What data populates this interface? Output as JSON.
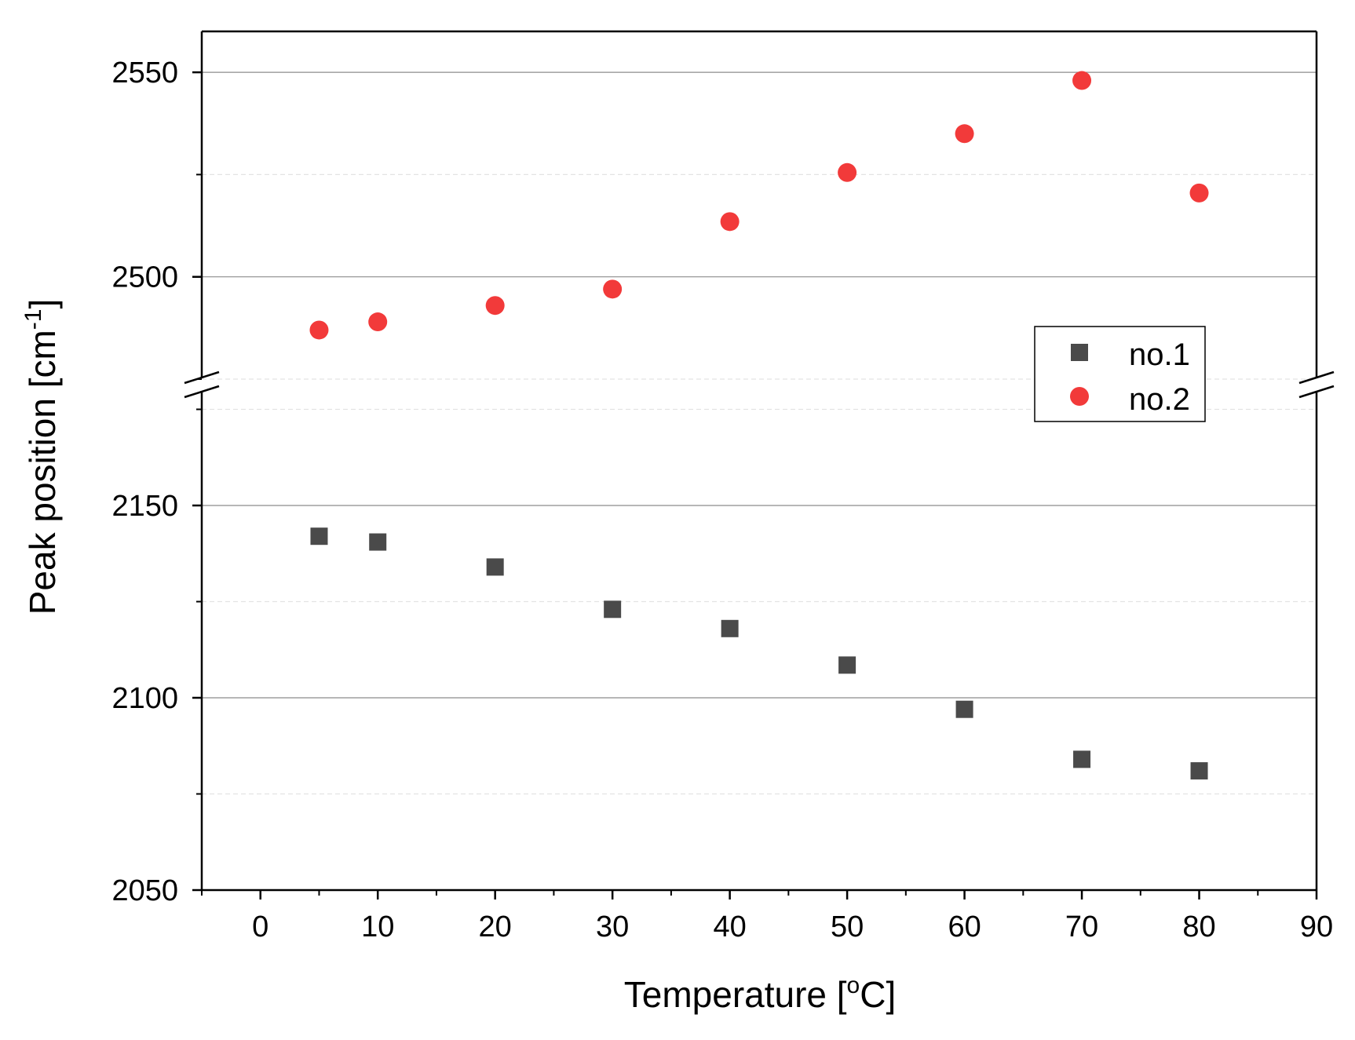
{
  "chart_data": {
    "type": "scatter",
    "title": "",
    "xlabel": "Temperature [",
    "xlabel_sup": "o",
    "xlabel_suffix": "C]",
    "ylabel": "Peak position [cm",
    "ylabel_sup": "-1",
    "ylabel_suffix": "]",
    "xlim": [
      -5,
      90
    ],
    "x_ticks": [
      0,
      10,
      20,
      30,
      40,
      50,
      60,
      70,
      80,
      90
    ],
    "x_tick_labels": [
      "0",
      "10",
      "20",
      "30",
      "40",
      "50",
      "60",
      "70",
      "80",
      "90"
    ],
    "y_axis_break": true,
    "upper_ylim": [
      2475,
      2560
    ],
    "upper_y_ticks": [
      2500,
      2550
    ],
    "upper_y_tick_labels": [
      "2500",
      "2550"
    ],
    "upper_minor_y": [
      2475,
      2525
    ],
    "lower_ylim": [
      2050,
      2180
    ],
    "lower_y_ticks": [
      2050,
      2100,
      2150
    ],
    "lower_y_tick_labels": [
      "2050",
      "2100",
      "2150"
    ],
    "lower_minor_y": [
      2075,
      2125,
      2175
    ],
    "grid": true,
    "legend_position": "center-right",
    "series": [
      {
        "name": "no.1",
        "marker": "square",
        "color": "#4a4a4a",
        "x": [
          5,
          10,
          20,
          30,
          40,
          50,
          60,
          70,
          80
        ],
        "y": [
          2142,
          2140.5,
          2134,
          2123,
          2118,
          2108.5,
          2097,
          2084,
          2081
        ]
      },
      {
        "name": "no.2",
        "marker": "circle",
        "color": "#f23a3a",
        "x": [
          5,
          10,
          20,
          30,
          40,
          50,
          60,
          70,
          80
        ],
        "y": [
          2487,
          2489,
          2493,
          2497,
          2513.5,
          2525.5,
          2535,
          2548,
          2520.5
        ]
      }
    ]
  }
}
